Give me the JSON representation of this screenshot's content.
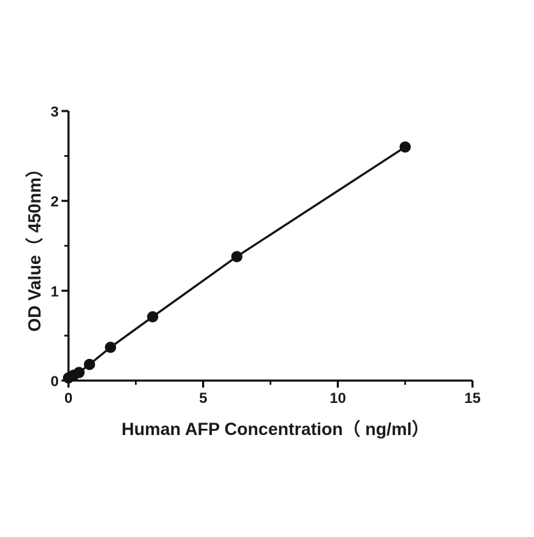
{
  "chart_data": {
    "type": "scatter",
    "title": "",
    "xlabel": "Human AFP Concentration（ ng/ml）",
    "ylabel": "OD Value（ 450nm）",
    "xlim": [
      0,
      15
    ],
    "ylim": [
      0,
      3
    ],
    "x_ticks": [
      "0",
      "5",
      "10",
      "15"
    ],
    "y_ticks": [
      "0",
      "1",
      "2",
      "3"
    ],
    "grid": false,
    "legend": "none",
    "series": [
      {
        "points": [
          {
            "x": 0,
            "y": 0.03
          },
          {
            "x": 0.195,
            "y": 0.06
          },
          {
            "x": 0.39,
            "y": 0.09
          },
          {
            "x": 0.78,
            "y": 0.18
          },
          {
            "x": 1.56,
            "y": 0.37
          },
          {
            "x": 3.125,
            "y": 0.71
          },
          {
            "x": 6.25,
            "y": 1.38
          },
          {
            "x": 12.5,
            "y": 2.6
          }
        ],
        "color": "#111111",
        "fit_line": true
      }
    ]
  }
}
